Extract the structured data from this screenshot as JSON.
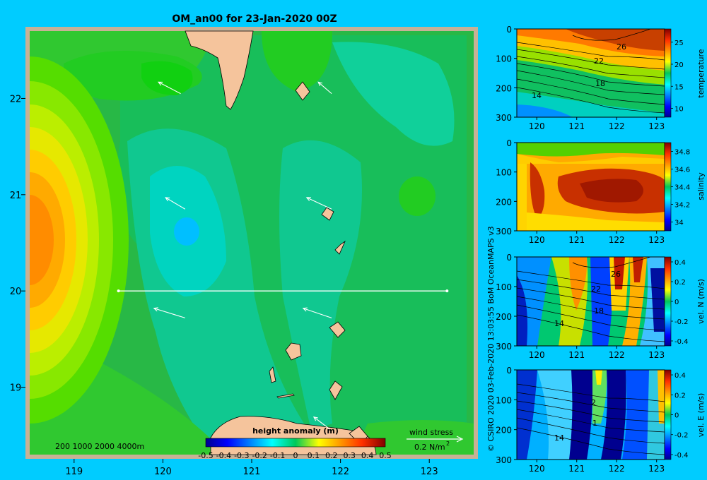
{
  "chart_data": [
    {
      "type": "heatmap",
      "title": "OM_an00 for 23-Jan-2020 00Z",
      "x_ticks": [
        119,
        120,
        121,
        122,
        123
      ],
      "y_ticks": [
        19,
        20,
        21,
        22
      ],
      "xlim": [
        118.5,
        123.5
      ],
      "ylim": [
        18.3,
        22.7
      ],
      "colorbar": {
        "label": "height anomaly  (m)",
        "range": [
          -0.5,
          0.5
        ],
        "tick_labels": [
          "-0.5",
          "-0.4",
          "-0.3",
          "-0.2",
          "-0.1",
          "0",
          "0.1",
          "0.2",
          "0.3",
          "0.4",
          "0.5"
        ]
      },
      "bathymetry_labels": "200  1000  2000  4000m",
      "wind_stress": {
        "label": "wind stress",
        "scale_label": "0.2 N/m",
        "scale_exponent": "2"
      },
      "transect": {
        "lat": 20,
        "lon_start": 119.5,
        "lon_end": 123.2
      },
      "wind_vectors": [
        {
          "lon": 120.2,
          "lat": 22.05,
          "dlon": -0.25,
          "dlat": 0.12
        },
        {
          "lon": 121.9,
          "lat": 22.05,
          "dlon": -0.15,
          "dlat": 0.12
        },
        {
          "lon": 120.25,
          "lat": 20.85,
          "dlon": -0.22,
          "dlat": 0.12
        },
        {
          "lon": 121.9,
          "lat": 20.85,
          "dlon": -0.28,
          "dlat": 0.12
        },
        {
          "lon": 120.25,
          "lat": 19.72,
          "dlon": -0.35,
          "dlat": 0.1
        },
        {
          "lon": 121.9,
          "lat": 19.72,
          "dlon": -0.32,
          "dlat": 0.1
        },
        {
          "lon": 121.9,
          "lat": 18.55,
          "dlon": -0.2,
          "dlat": 0.14
        }
      ]
    },
    {
      "type": "heatmap",
      "x_ticks": [
        120,
        121,
        122,
        123
      ],
      "y_ticks": [
        0,
        100,
        200,
        300
      ],
      "colorbar": {
        "label": "temperature",
        "tick_labels": [
          "25",
          "20",
          "15",
          "10"
        ],
        "range": [
          8,
          28
        ]
      },
      "contour_labels": [
        "26",
        "22",
        "18",
        "14"
      ]
    },
    {
      "type": "heatmap",
      "x_ticks": [
        120,
        121,
        122,
        123
      ],
      "y_ticks": [
        0,
        100,
        200,
        300
      ],
      "colorbar": {
        "label": "salinity",
        "tick_labels": [
          "34.8",
          "34.6",
          "34.4",
          "34.2",
          "34"
        ],
        "range": [
          33.9,
          34.9
        ]
      }
    },
    {
      "type": "heatmap",
      "x_ticks": [
        120,
        121,
        122,
        123
      ],
      "y_ticks": [
        0,
        100,
        200,
        300
      ],
      "colorbar": {
        "label": "vel. N  (m/s)",
        "tick_labels": [
          "0.4",
          "0.2",
          "0",
          "-0.2",
          "-0.4"
        ],
        "range": [
          -0.45,
          0.45
        ]
      },
      "contour_labels": [
        "26",
        "22",
        "18",
        "14"
      ]
    },
    {
      "type": "heatmap",
      "x_ticks": [
        120,
        121,
        122,
        123
      ],
      "y_ticks": [
        0,
        100,
        200,
        300
      ],
      "colorbar": {
        "label": "vel. E  (m/s)",
        "tick_labels": [
          "0.4",
          "0.2",
          "0",
          "-0.2",
          "-0.4"
        ],
        "range": [
          -0.45,
          0.45
        ]
      },
      "contour_labels": [
        "2",
        "1",
        "14"
      ]
    }
  ],
  "credit": "© CSIRO 2020   03-Feb-2020 13:03:55 BoM OceanMAPS v3",
  "colors": {
    "background": "#00ccff",
    "land": "#f5c49c",
    "map_frame": "#c8b196"
  }
}
